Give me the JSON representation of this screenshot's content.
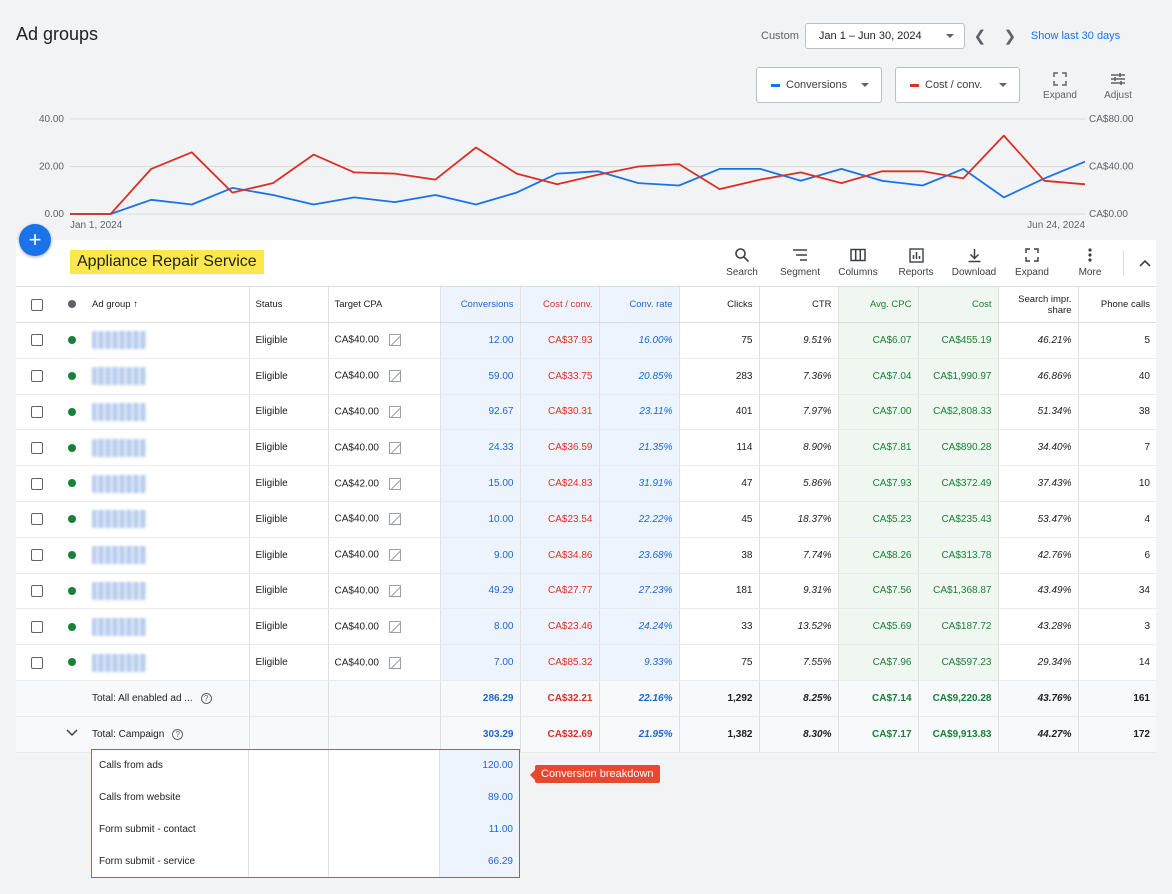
{
  "page_title": "Ad groups",
  "date": {
    "label": "Custom",
    "range": "Jan 1 – Jun 30, 2024",
    "show_last": "Show last 30 days"
  },
  "metrics": {
    "primary": {
      "label": "Conversions",
      "color": "#1a73e8"
    },
    "secondary": {
      "label": "Cost / conv.",
      "color": "#d93025"
    }
  },
  "chart_tools": {
    "expand": "Expand",
    "adjust": "Adjust"
  },
  "chart_data": {
    "type": "line",
    "x_start_label": "Jan 1, 2024",
    "x_end_label": "Jun 24, 2024",
    "y_left_ticks": [
      "40.00",
      "20.00",
      "0.00"
    ],
    "y_right_ticks": [
      "CA$80.00",
      "CA$40.00",
      "CA$0.00"
    ],
    "y_left_range": [
      0,
      40
    ],
    "y_right_range": [
      0,
      80
    ],
    "grid": true,
    "series": [
      {
        "name": "Conversions",
        "axis": "left",
        "color": "#1a73e8",
        "values": [
          0,
          0,
          6,
          4,
          11,
          8,
          4,
          7,
          5,
          8,
          4,
          9,
          17,
          18,
          13,
          12,
          19,
          19,
          14,
          19,
          14,
          12,
          19,
          7,
          15,
          22
        ]
      },
      {
        "name": "Cost / conv.",
        "axis": "right",
        "color": "#d93025",
        "values": [
          0,
          0,
          38,
          52,
          18,
          26,
          50,
          35,
          34,
          29,
          56,
          34,
          25,
          33,
          40,
          42,
          21,
          29,
          35,
          26,
          36,
          36,
          30,
          66,
          28,
          25
        ]
      }
    ]
  },
  "highlight_label": "Appliance Repair Service",
  "toolbar": [
    "Search",
    "Segment",
    "Columns",
    "Reports",
    "Download",
    "Expand",
    "More"
  ],
  "columns": [
    "Ad group",
    "Status",
    "Target CPA",
    "Conversions",
    "Cost / conv.",
    "Conv. rate",
    "Clicks",
    "CTR",
    "Avg. CPC",
    "Cost",
    "Search impr. share",
    "Phone calls"
  ],
  "rows": [
    {
      "status": "Eligible",
      "target_cpa": "CA$40.00",
      "conversions": "12.00",
      "cost_conv": "CA$37.93",
      "conv_rate": "16.00%",
      "clicks": "75",
      "ctr": "9.51%",
      "avg_cpc": "CA$6.07",
      "cost": "CA$455.19",
      "impr_share": "46.21%",
      "calls": "5"
    },
    {
      "status": "Eligible",
      "target_cpa": "CA$40.00",
      "conversions": "59.00",
      "cost_conv": "CA$33.75",
      "conv_rate": "20.85%",
      "clicks": "283",
      "ctr": "7.36%",
      "avg_cpc": "CA$7.04",
      "cost": "CA$1,990.97",
      "impr_share": "46.86%",
      "calls": "40"
    },
    {
      "status": "Eligible",
      "target_cpa": "CA$40.00",
      "conversions": "92.67",
      "cost_conv": "CA$30.31",
      "conv_rate": "23.11%",
      "clicks": "401",
      "ctr": "7.97%",
      "avg_cpc": "CA$7.00",
      "cost": "CA$2,808.33",
      "impr_share": "51.34%",
      "calls": "38"
    },
    {
      "status": "Eligible",
      "target_cpa": "CA$40.00",
      "conversions": "24.33",
      "cost_conv": "CA$36.59",
      "conv_rate": "21.35%",
      "clicks": "114",
      "ctr": "8.90%",
      "avg_cpc": "CA$7.81",
      "cost": "CA$890.28",
      "impr_share": "34.40%",
      "calls": "7"
    },
    {
      "status": "Eligible",
      "target_cpa": "CA$42.00",
      "conversions": "15.00",
      "cost_conv": "CA$24.83",
      "conv_rate": "31.91%",
      "clicks": "47",
      "ctr": "5.86%",
      "avg_cpc": "CA$7.93",
      "cost": "CA$372.49",
      "impr_share": "37.43%",
      "calls": "10"
    },
    {
      "status": "Eligible",
      "target_cpa": "CA$40.00",
      "conversions": "10.00",
      "cost_conv": "CA$23.54",
      "conv_rate": "22.22%",
      "clicks": "45",
      "ctr": "18.37%",
      "avg_cpc": "CA$5.23",
      "cost": "CA$235.43",
      "impr_share": "53.47%",
      "calls": "4"
    },
    {
      "status": "Eligible",
      "target_cpa": "CA$40.00",
      "conversions": "9.00",
      "cost_conv": "CA$34.86",
      "conv_rate": "23.68%",
      "clicks": "38",
      "ctr": "7.74%",
      "avg_cpc": "CA$8.26",
      "cost": "CA$313.78",
      "impr_share": "42.76%",
      "calls": "6"
    },
    {
      "status": "Eligible",
      "target_cpa": "CA$40.00",
      "conversions": "49.29",
      "cost_conv": "CA$27.77",
      "conv_rate": "27.23%",
      "clicks": "181",
      "ctr": "9.31%",
      "avg_cpc": "CA$7.56",
      "cost": "CA$1,368.87",
      "impr_share": "43.49%",
      "calls": "34"
    },
    {
      "status": "Eligible",
      "target_cpa": "CA$40.00",
      "conversions": "8.00",
      "cost_conv": "CA$23.46",
      "conv_rate": "24.24%",
      "clicks": "33",
      "ctr": "13.52%",
      "avg_cpc": "CA$5.69",
      "cost": "CA$187.72",
      "impr_share": "43.28%",
      "calls": "3"
    },
    {
      "status": "Eligible",
      "target_cpa": "CA$40.00",
      "conversions": "7.00",
      "cost_conv": "CA$85.32",
      "conv_rate": "9.33%",
      "clicks": "75",
      "ctr": "7.55%",
      "avg_cpc": "CA$7.96",
      "cost": "CA$597.23",
      "impr_share": "29.34%",
      "calls": "14"
    }
  ],
  "totals": [
    {
      "label": "Total: All enabled ad ...",
      "conversions": "286.29",
      "cost_conv": "CA$32.21",
      "conv_rate": "22.16%",
      "clicks": "1,292",
      "ctr": "8.25%",
      "avg_cpc": "CA$7.14",
      "cost": "CA$9,220.28",
      "impr_share": "43.76%",
      "calls": "161"
    },
    {
      "label": "Total: Campaign",
      "conversions": "303.29",
      "cost_conv": "CA$32.69",
      "conv_rate": "21.95%",
      "clicks": "1,382",
      "ctr": "8.30%",
      "avg_cpc": "CA$7.17",
      "cost": "CA$9,913.83",
      "impr_share": "44.27%",
      "calls": "172"
    }
  ],
  "breakdown": [
    {
      "name": "Calls from ads",
      "value": "120.00"
    },
    {
      "name": "Calls from website",
      "value": "89.00"
    },
    {
      "name": "Form submit - contact",
      "value": "11.00"
    },
    {
      "name": "Form submit - service",
      "value": "66.29"
    }
  ],
  "callout": "Conversion breakdown"
}
